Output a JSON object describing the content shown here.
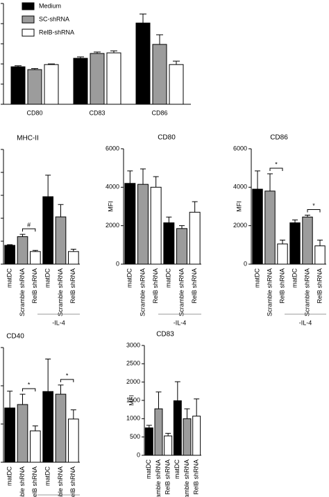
{
  "chart_data": [
    {
      "type": "grouped_bar",
      "categories": [
        "CD80",
        "CD83",
        "CD86"
      ],
      "series": [
        {
          "name": "Medium",
          "color": "#000000",
          "values": [
            1.86,
            2.28,
            4.03
          ],
          "errors": [
            0.05,
            0.07,
            0.45
          ]
        },
        {
          "name": "SC-shRNA",
          "color": "#9c9c9c",
          "values": [
            1.72,
            2.52,
            2.97
          ],
          "errors": [
            0.05,
            0.07,
            0.48
          ]
        },
        {
          "name": "RelB-shRNA",
          "color": "#ffffff",
          "values": [
            1.97,
            2.55,
            1.97
          ],
          "errors": [
            0.03,
            0.1,
            0.17
          ]
        }
      ],
      "ylim": [
        0,
        5
      ],
      "yticks": [
        0,
        1,
        2,
        3,
        4,
        5
      ]
    },
    {
      "type": "bar",
      "title": "MHC-II",
      "categories": [
        "matDC",
        "Scramble shRNA",
        "RelB shRNA",
        "matDC",
        "Scramble shRNA",
        "RelB shRNA"
      ],
      "values": [
        0.82,
        1.2,
        0.55,
        2.94,
        2.06,
        0.55
      ],
      "errors": [
        0.03,
        0.1,
        0.05,
        0.94,
        0.54,
        0.1
      ],
      "colors": [
        "#000000",
        "#9c9c9c",
        "#ffffff",
        "#000000",
        "#9c9c9c",
        "#ffffff"
      ],
      "annotations": [
        {
          "text": "#",
          "bars": [
            1,
            2
          ]
        }
      ],
      "group_label": "-IL-4",
      "ylim": [
        0,
        5
      ],
      "yticks": [
        0,
        1,
        2,
        3,
        4,
        5
      ]
    },
    {
      "type": "bar",
      "title": "CD80",
      "ylabel": "MFI",
      "categories": [
        "matDC",
        "Scramble shRNA",
        "RelB shRNA",
        "matDC",
        "Scramble shRNA",
        "RelB shRNA"
      ],
      "values": [
        4200,
        4150,
        4000,
        2150,
        1850,
        2700
      ],
      "errors": [
        650,
        800,
        550,
        300,
        150,
        550
      ],
      "colors": [
        "#000000",
        "#9c9c9c",
        "#ffffff",
        "#000000",
        "#9c9c9c",
        "#ffffff"
      ],
      "group_label": "-IL-4",
      "ylim": [
        0,
        6000
      ],
      "yticks": [
        0,
        2000,
        4000,
        6000
      ]
    },
    {
      "type": "bar",
      "title": "CD86",
      "ylabel": "MFI",
      "categories": [
        "matDC",
        "Scramble shRNA",
        "RelB shRNA",
        "matDC",
        "Scramble shRNA",
        "RelB shRNA"
      ],
      "values": [
        3900,
        3800,
        1050,
        2150,
        2450,
        950
      ],
      "errors": [
        950,
        900,
        200,
        150,
        100,
        300
      ],
      "colors": [
        "#000000",
        "#9c9c9c",
        "#ffffff",
        "#000000",
        "#9c9c9c",
        "#ffffff"
      ],
      "annotations": [
        {
          "text": "*",
          "bars": [
            1,
            2
          ]
        },
        {
          "text": "*",
          "bars": [
            4,
            5
          ]
        }
      ],
      "group_label": "-IL-4",
      "ylim": [
        0,
        6000
      ],
      "yticks": [
        0,
        2000,
        4000,
        6000
      ]
    },
    {
      "type": "bar",
      "title": "CD40",
      "categories": [
        "matDC",
        "Scramble shRNA",
        "RelB shRNA",
        "matDC",
        "Scramble shRNA",
        "RelB shRNA"
      ],
      "values": [
        1.42,
        1.51,
        0.82,
        1.85,
        1.78,
        1.13
      ],
      "errors": [
        0.44,
        0.27,
        0.13,
        0.85,
        0.24,
        0.24
      ],
      "colors": [
        "#000000",
        "#9c9c9c",
        "#ffffff",
        "#000000",
        "#9c9c9c",
        "#ffffff"
      ],
      "annotations": [
        {
          "text": "*",
          "bars": [
            1,
            2
          ]
        },
        {
          "text": "*",
          "bars": [
            4,
            5
          ]
        }
      ],
      "group_line": true,
      "ylim": [
        0,
        3
      ],
      "yticks": [
        0,
        1,
        2,
        3
      ]
    },
    {
      "type": "bar",
      "title": "CD83",
      "ylabel": "MFI",
      "categories": [
        "matDC",
        "Scramble shRNA",
        "RelB shRNA",
        "matDC",
        "Scramble shRNA",
        "RelB shRNA"
      ],
      "values": [
        750,
        1270,
        530,
        1490,
        1000,
        1070
      ],
      "errors": [
        70,
        460,
        70,
        520,
        270,
        470
      ],
      "colors": [
        "#000000",
        "#9c9c9c",
        "#ffffff",
        "#000000",
        "#9c9c9c",
        "#ffffff"
      ],
      "ylim": [
        0,
        3000
      ],
      "yticks": [
        0,
        500,
        1000,
        1500,
        2000,
        2500,
        3000
      ]
    }
  ]
}
